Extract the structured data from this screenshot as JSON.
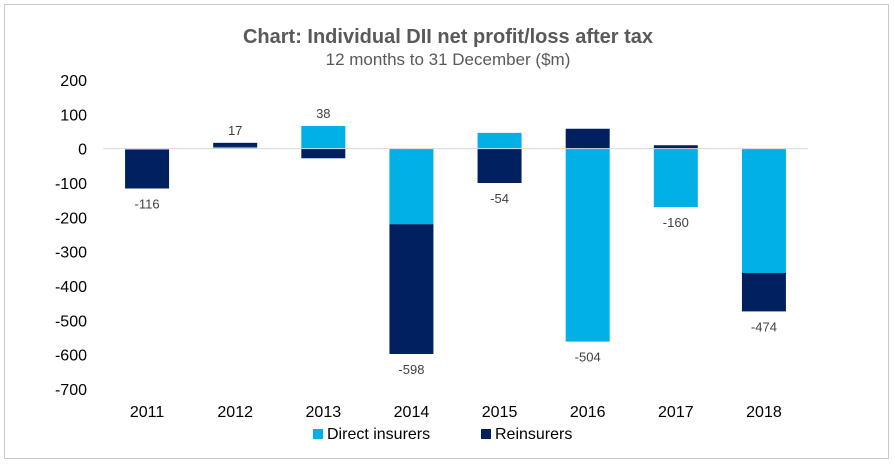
{
  "chart_data": {
    "type": "bar",
    "stacked": true,
    "title": "Chart: Individual DII net profit/loss after tax",
    "subtitle": "12 months to 31 December ($m)",
    "categories": [
      "2011",
      "2012",
      "2013",
      "2014",
      "2015",
      "2016",
      "2017",
      "2018"
    ],
    "series": [
      {
        "name": "Direct insurers",
        "color": "#00b0e6",
        "values": [
          -3,
          5,
          66,
          -220,
          46,
          -562,
          -170,
          -362
        ]
      },
      {
        "name": "Reinsurers",
        "color": "#002060",
        "values": [
          -113,
          12,
          -28,
          -378,
          -100,
          58,
          10,
          -112
        ]
      }
    ],
    "totals": [
      -116,
      17,
      38,
      -598,
      -54,
      -504,
      -160,
      -474
    ],
    "total_labels": [
      "-116",
      "17",
      "38",
      "-598",
      "-54",
      "-504",
      "-160",
      "-474"
    ],
    "ylim": [
      -700,
      200
    ],
    "yticks": [
      200,
      100,
      0,
      -100,
      -200,
      -300,
      -400,
      -500,
      -600,
      -700
    ],
    "ytick_labels": [
      "200",
      "100",
      "0",
      "-100",
      "-200",
      "-300",
      "-400",
      "-500",
      "-600",
      "-700"
    ],
    "xlabel": "",
    "ylabel": "",
    "grid": false,
    "legend_position": "bottom"
  }
}
